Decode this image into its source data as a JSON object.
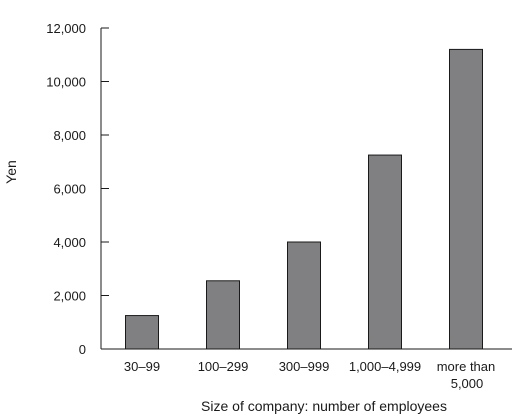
{
  "chart_data": {
    "type": "bar",
    "title": "",
    "xlabel": "Size of company: number of employees",
    "ylabel": "Yen",
    "categories": [
      [
        "30–99"
      ],
      [
        "100–299"
      ],
      [
        "300–999"
      ],
      [
        "1,000–4,999"
      ],
      [
        "more than",
        "5,000"
      ]
    ],
    "values": [
      1250,
      2550,
      4000,
      7250,
      11200
    ],
    "ylim": [
      0,
      12000
    ],
    "yticks": [
      0,
      2000,
      4000,
      6000,
      8000,
      10000,
      12000
    ],
    "ytick_labels": [
      "0",
      "2,000",
      "4,000",
      "6,000",
      "8,000",
      "10,000",
      "12,000"
    ],
    "bar_color": "#808083",
    "bar_edge_color": "#1a1a1a",
    "grid": false,
    "legend": "none"
  }
}
